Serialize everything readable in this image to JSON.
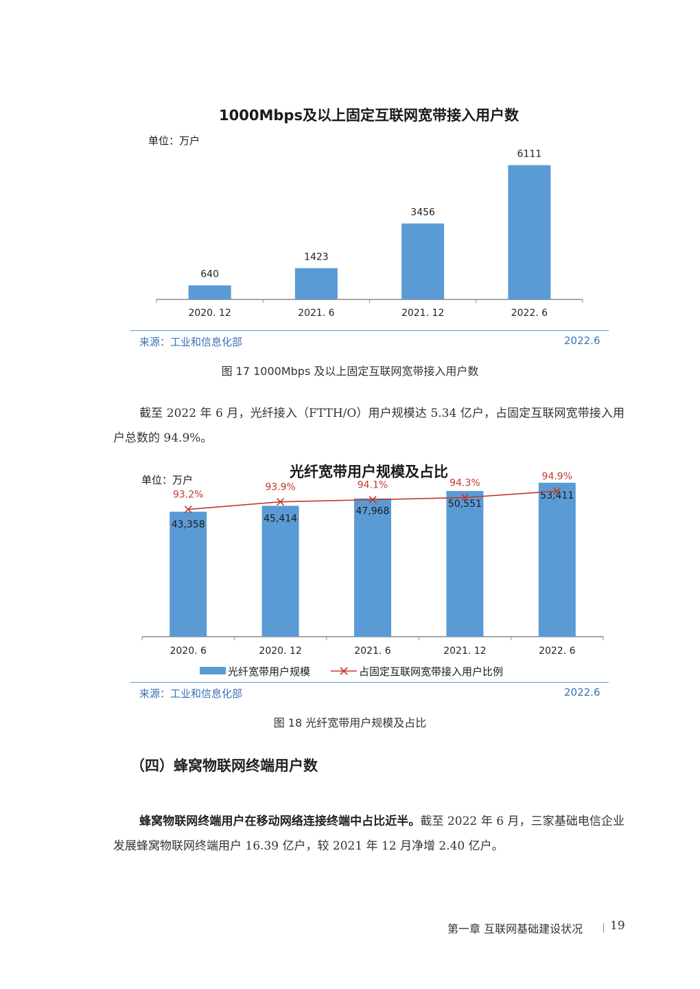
{
  "chart_data": [
    {
      "type": "bar",
      "title": "1000Mbps及以上固定互联网宽带接入用户数",
      "unit_label": "单位：万户",
      "categories": [
        "2020. 12",
        "2021. 6",
        "2021. 12",
        "2022. 6"
      ],
      "values": [
        640,
        1423,
        3456,
        6111
      ],
      "value_labels": [
        "640",
        "1423",
        "3456",
        "6111"
      ],
      "ylim": [
        0,
        6500
      ],
      "grid": false,
      "legend": "none",
      "bar_color": "#5b9bd5"
    },
    {
      "type": "bar",
      "title": "光纤宽带用户规模及占比",
      "unit_label": "单位：万户",
      "categories": [
        "2020. 6",
        "2020. 12",
        "2021. 6",
        "2021. 12",
        "2022. 6"
      ],
      "ylim": [
        0,
        56000
      ],
      "grid": false,
      "legend": "bottom",
      "series": [
        {
          "name": "光纤宽带用户规模",
          "type": "bar",
          "color": "#5b9bd5",
          "values": [
            43358,
            45414,
            47968,
            50551,
            53411
          ],
          "value_labels": [
            "43,358",
            "45,414",
            "47,968",
            "50,551",
            "53,411"
          ]
        },
        {
          "name": "占固定互联网宽带接入用户比例",
          "type": "line",
          "marker": "x",
          "color": "#c0392b",
          "values": [
            93.2,
            93.9,
            94.1,
            94.3,
            94.9
          ],
          "value_labels": [
            "93.2%",
            "93.9%",
            "94.1%",
            "94.3%",
            "94.9%"
          ]
        }
      ]
    }
  ],
  "chart1_source": {
    "left": "来源：工业和信息化部",
    "right": "2022.6"
  },
  "chart2_source": {
    "left": "来源：工业和信息化部",
    "right": "2022.6"
  },
  "caption_17": "图 17  1000Mbps 及以上固定互联网宽带接入用户数",
  "caption_18": "图 18  光纤宽带用户规模及占比",
  "paragraph_1": "截至 2022 年 6 月，光纤接入（FTTH/O）用户规模达 5.34 亿户，占固定互联网宽带接入用户总数的 94.9%。",
  "section_heading": "（四）蜂窝物联网终端用户数",
  "paragraph_2_bold": "蜂窝物联网终端用户在移动网络连接终端中占比近半。",
  "paragraph_2_rest": "截至 2022 年 6 月，三家基础电信企业发展蜂窝物联网终端用户 16.39 亿户，较 2021 年 12 月净增 2.40 亿户。",
  "footer": {
    "chapter": "第一章   互联网基础建设状况",
    "page": "19"
  }
}
